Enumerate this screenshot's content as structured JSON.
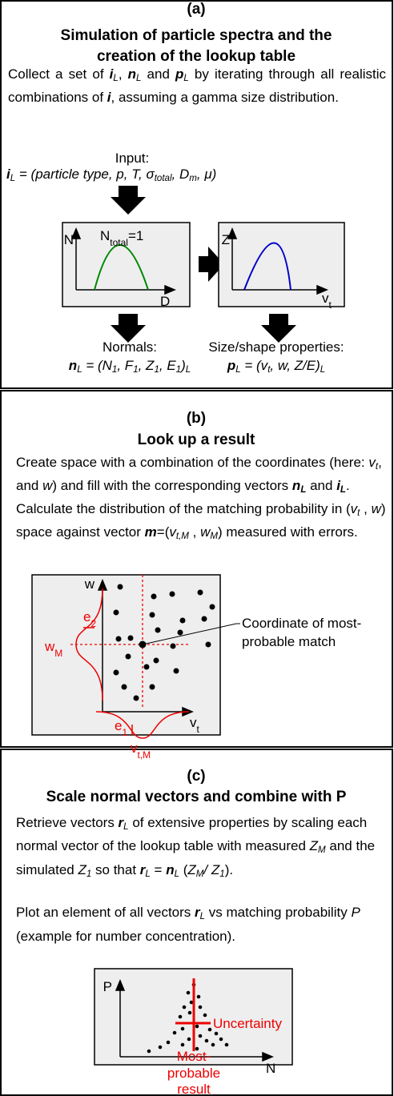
{
  "panel_a": {
    "label": "(a)",
    "title": "Simulation of particle spectra and the creation of the lookup table",
    "description": [
      "Collect a set of ",
      {
        "text": "i",
        "bold": true,
        "italic": true
      },
      {
        "text": "L",
        "sub": true,
        "italic": true
      },
      ", ",
      {
        "text": "n",
        "bold": true,
        "italic": true
      },
      {
        "text": "L",
        "sub": true,
        "italic": true
      },
      " and ",
      {
        "text": "p",
        "bold": true,
        "italic": true
      },
      {
        "text": "L",
        "sub": true,
        "italic": true
      },
      " by iterating through all realistic combinations of ",
      {
        "text": "i",
        "bold": true,
        "italic": true
      },
      ", assuming a gamma size distribution."
    ],
    "input_label": "Input:",
    "input_vector": [
      {
        "text": "i",
        "bold": true,
        "italic": true
      },
      {
        "text": "L",
        "sub": true,
        "italic": true
      },
      {
        "text": " = (particle type, p, T, σ",
        "italic": true
      },
      {
        "text": "total",
        "sub": true,
        "italic": true
      },
      {
        "text": ", D",
        "italic": true
      },
      {
        "text": "m",
        "sub": true,
        "italic": true
      },
      {
        "text": ", μ)",
        "italic": true
      }
    ],
    "plot_size_distribution": {
      "y_label": "N",
      "x_label": "D",
      "annotation": [
        "N",
        {
          "text": "total",
          "sub": true
        },
        "=1"
      ]
    },
    "plot_velocity": {
      "y_label": "Z",
      "x_label": [
        "v",
        {
          "text": "t",
          "sub": true
        }
      ]
    },
    "normals_label": "Normals:",
    "normals_vector": [
      {
        "text": "n",
        "bold": true,
        "italic": true
      },
      {
        "text": "L",
        "sub": true,
        "italic": true
      },
      {
        "text": " = (N",
        "italic": true
      },
      {
        "text": "1",
        "sub": true,
        "italic": true
      },
      {
        "text": ", F",
        "italic": true
      },
      {
        "text": "1",
        "sub": true,
        "italic": true
      },
      {
        "text": ", Z",
        "italic": true
      },
      {
        "text": "1",
        "sub": true,
        "italic": true
      },
      {
        "text": ", E",
        "italic": true
      },
      {
        "text": "1",
        "sub": true,
        "italic": true
      },
      {
        "text": ")",
        "italic": true
      },
      {
        "text": "L",
        "sub": true,
        "italic": true
      }
    ],
    "properties_label": "Size/shape properties:",
    "properties_vector": [
      {
        "text": "p",
        "bold": true,
        "italic": true
      },
      {
        "text": "L",
        "sub": true,
        "italic": true
      },
      {
        "text": " = (v",
        "italic": true
      },
      {
        "text": "t",
        "sub": true,
        "italic": true
      },
      {
        "text": ", w, Z/E)",
        "italic": true
      },
      {
        "text": "L",
        "sub": true,
        "italic": true
      }
    ]
  },
  "panel_b": {
    "label": "(b)",
    "title": "Look up a result",
    "paragraph_1": [
      "Create space with a combination of the coordinates (here: ",
      {
        "text": "v",
        "italic": true
      },
      {
        "text": "t",
        "sub": true,
        "italic": true
      },
      ", and ",
      {
        "text": "w",
        "italic": true
      },
      ") and fill with the corresponding vectors ",
      {
        "text": "n",
        "bold": true,
        "italic": true
      },
      {
        "text": "L",
        "sub": true,
        "italic": true,
        "bold": true
      },
      " and ",
      {
        "text": "i",
        "bold": true,
        "italic": true
      },
      {
        "text": "L",
        "sub": true,
        "italic": true,
        "bold": true
      },
      "."
    ],
    "paragraph_2": [
      "Calculate the distribution of the matching probability in (",
      {
        "text": "v",
        "italic": true
      },
      {
        "text": "t",
        "sub": true,
        "italic": true
      },
      " , ",
      {
        "text": "w",
        "italic": true
      },
      ") space against vector ",
      {
        "text": "m",
        "bold": true,
        "italic": true
      },
      "=(",
      {
        "text": "v",
        "italic": true
      },
      {
        "text": "t,M",
        "sub": true,
        "italic": true
      },
      " , ",
      {
        "text": "w",
        "italic": true
      },
      {
        "text": "M",
        "sub": true,
        "italic": true
      },
      ") measured with errors."
    ],
    "diagram": {
      "y_label": "w",
      "x_label": [
        "v",
        {
          "text": "t",
          "sub": true
        }
      ],
      "error_w": [
        "e",
        {
          "text": "2",
          "sub": true
        }
      ],
      "measured_w": [
        "w",
        {
          "text": "M",
          "sub": true
        }
      ],
      "error_v": [
        "e",
        {
          "text": "1",
          "sub": true
        }
      ],
      "measured_v": [
        "v",
        {
          "text": "t,M",
          "sub": true
        }
      ],
      "annotation": [
        "Coordinate of most-",
        "probable match"
      ]
    }
  },
  "panel_c": {
    "label": "(c)",
    "title": "Scale normal vectors and combine with P",
    "paragraph_1": [
      "Retrieve vectors ",
      {
        "text": "r",
        "bold": true,
        "italic": true
      },
      {
        "text": "L",
        "sub": true,
        "italic": true
      },
      " of extensive properties by scaling each normal vector of the lookup table with measured ",
      {
        "text": "Z",
        "italic": true
      },
      {
        "text": "M",
        "sub": true,
        "italic": true
      },
      " and the simulated ",
      {
        "text": "Z",
        "italic": true
      },
      {
        "text": "1",
        "sub": true,
        "italic": true
      },
      " so that ",
      {
        "text": "r",
        "bold": true,
        "italic": true
      },
      {
        "text": "L",
        "sub": true,
        "italic": true
      },
      " = ",
      {
        "text": "n",
        "bold": true,
        "italic": true
      },
      {
        "text": "L",
        "sub": true,
        "italic": true
      },
      " (",
      {
        "text": "Z",
        "italic": true
      },
      {
        "text": "M",
        "sub": true,
        "italic": true
      },
      {
        "text": "/ Z",
        "italic": true
      },
      {
        "text": "1",
        "sub": true,
        "italic": true
      },
      ")."
    ],
    "paragraph_2": [
      "Plot an element of all vectors ",
      {
        "text": "r",
        "bold": true,
        "italic": true
      },
      {
        "text": "L",
        "sub": true,
        "italic": true
      },
      " vs matching probability ",
      {
        "text": "P",
        "italic": true
      },
      " (example for number concentration)."
    ],
    "plot": {
      "y_label": "P",
      "x_label": "N",
      "uncertainty": "Uncertainty",
      "result": [
        "Most-",
        "probable",
        "result"
      ]
    }
  }
}
